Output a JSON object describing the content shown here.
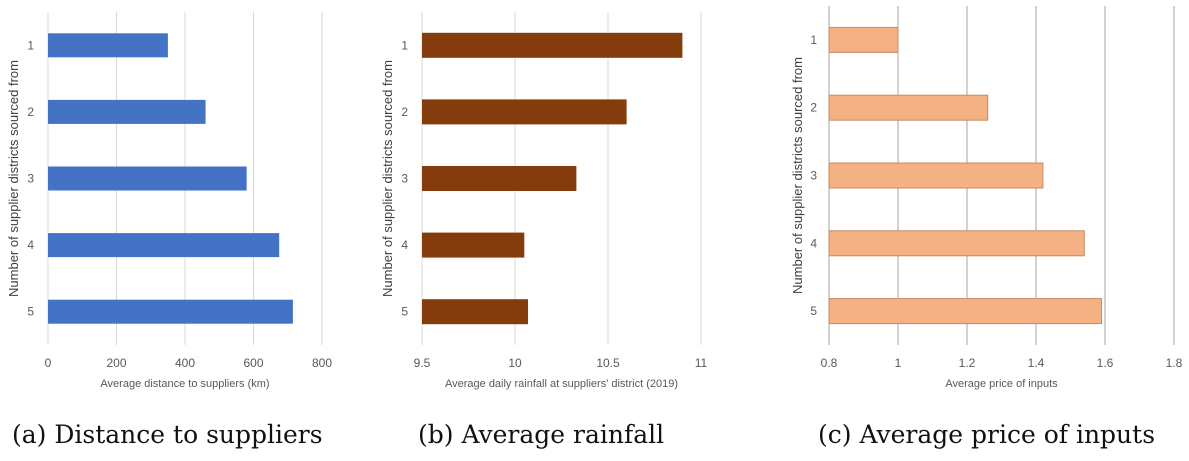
{
  "chart_data": [
    {
      "type": "bar",
      "orientation": "horizontal",
      "categories": [
        "1",
        "2",
        "3",
        "4",
        "5"
      ],
      "values": [
        350,
        460,
        580,
        675,
        715
      ],
      "xlabel": "Average distance to suppliers (km)",
      "ylabel": "Number of supplier districts sourced from",
      "xlim": [
        0,
        800
      ],
      "xticks": [
        0,
        200,
        400,
        600,
        800
      ],
      "xtick_labels": [
        "0",
        "200",
        "400",
        "600",
        "800"
      ],
      "grid": "vertical",
      "color": "#4472C4",
      "caption": "(a) Distance to suppliers"
    },
    {
      "type": "bar",
      "orientation": "horizontal",
      "categories": [
        "1",
        "2",
        "3",
        "4",
        "5"
      ],
      "values": [
        10.9,
        10.6,
        10.33,
        10.05,
        10.07
      ],
      "xlabel": "Average daily rainfall at suppliers' district  (2019)",
      "ylabel": "Number of supplier districts sourced from",
      "xlim": [
        9.5,
        11
      ],
      "xticks": [
        9.5,
        10,
        10.5,
        11
      ],
      "xtick_labels": [
        "9.5",
        "10",
        "10.5",
        "11"
      ],
      "grid": "vertical",
      "color": "#843C0C",
      "caption": "(b) Average rainfall"
    },
    {
      "type": "bar",
      "orientation": "horizontal",
      "categories": [
        "1",
        "2",
        "3",
        "4",
        "5"
      ],
      "values": [
        1.0,
        1.26,
        1.42,
        1.54,
        1.59
      ],
      "xlabel": "Average price of inputs",
      "ylabel": "Number of supplier districts sourced from",
      "xlim": [
        0.8,
        1.8
      ],
      "xticks": [
        0.8,
        1.0,
        1.2,
        1.4,
        1.6,
        1.8
      ],
      "xtick_labels": [
        "0.8",
        "1",
        "1.2",
        "1.4",
        "1.6",
        "1.8"
      ],
      "grid": "vertical",
      "color": "#F4B183",
      "bar_stroke": "#C98A5E",
      "caption": "(c) Average price of inputs"
    }
  ]
}
